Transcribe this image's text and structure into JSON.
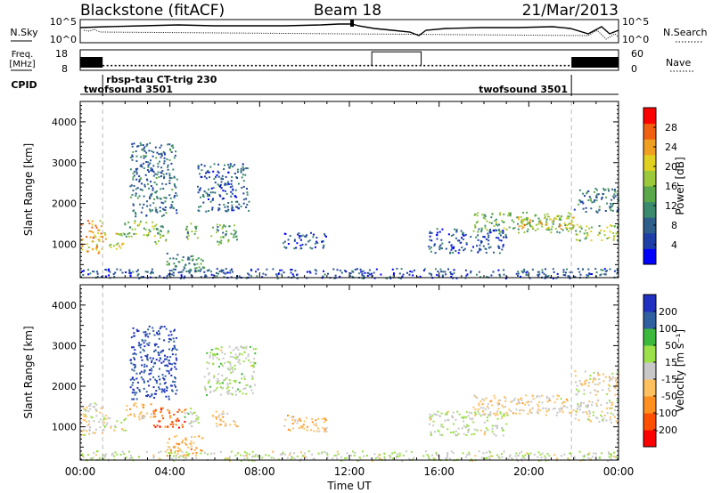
{
  "header": {
    "radar": "Blackstone (fitACF)",
    "beam": "Beam 18",
    "date": "21/Mar/2013"
  },
  "status_panels": {
    "nsky_label": "N.Sky",
    "nsearch_label": "N.Search",
    "noise_ticks": [
      "10^5",
      "10^0"
    ],
    "freq_label": "Freq.",
    "freq_unit": "[MHz]",
    "freq_ticks": [
      "18",
      "8"
    ],
    "nave_label": "Nave",
    "nave_ticks": [
      "60",
      "0"
    ],
    "cpid_label": "CPID",
    "cpid_segments": [
      {
        "name": "twofsound 3501",
        "start_h": 0.0,
        "end_h": 1.0
      },
      {
        "name": "rbsp-tau CT-trig 230",
        "start_h": 1.0,
        "end_h": 21.9
      },
      {
        "name": "twofsound 3501",
        "start_h": 21.9,
        "end_h": 24.0
      }
    ],
    "freq_high_window_h": [
      13.0,
      15.2
    ],
    "freq_dense_windows_h": [
      [
        0.0,
        1.0
      ],
      [
        21.9,
        24.0
      ]
    ]
  },
  "chart_data": [
    {
      "type": "heatmap",
      "panel": "power",
      "ylabel": "Slant Range [km]",
      "xlabel": "",
      "xlim": [
        0,
        24
      ],
      "ylim": [
        180,
        4500
      ],
      "yticks": [
        "1000",
        "2000",
        "3000",
        "4000"
      ],
      "colorbar_label": "Power [dB]",
      "colorbar_ticks": [
        "28",
        "24",
        "20",
        "16",
        "12",
        "8",
        "4"
      ],
      "colorbar_range": [
        0,
        30
      ],
      "colors": [
        "#0000ff",
        "#1f3fa8",
        "#2e5e8a",
        "#3c8a6e",
        "#5aa84a",
        "#9cc83c",
        "#e0d020",
        "#f0a020",
        "#f06010",
        "#ff0000"
      ],
      "echo_regions": [
        {
          "t": [
            0.0,
            1.0
          ],
          "r": [
            800,
            1600
          ],
          "value": 22
        },
        {
          "t": [
            1.0,
            1.9
          ],
          "r": [
            900,
            1300
          ],
          "value": 18
        },
        {
          "t": [
            1.9,
            3.2
          ],
          "r": [
            1200,
            1600
          ],
          "value": 15
        },
        {
          "t": [
            3.2,
            4.0
          ],
          "r": [
            1000,
            1500
          ],
          "value": 14
        },
        {
          "t": [
            2.2,
            4.3
          ],
          "r": [
            1700,
            3500
          ],
          "value": 8
        },
        {
          "t": [
            3.8,
            5.5
          ],
          "r": [
            300,
            800
          ],
          "value": 10
        },
        {
          "t": [
            4.6,
            5.2
          ],
          "r": [
            1100,
            1600
          ],
          "value": 13
        },
        {
          "t": [
            5.2,
            7.5
          ],
          "r": [
            1800,
            3000
          ],
          "value": 7
        },
        {
          "t": [
            5.8,
            7.0
          ],
          "r": [
            1000,
            1500
          ],
          "value": 12
        },
        {
          "t": [
            9.0,
            11.0
          ],
          "r": [
            900,
            1300
          ],
          "value": 6
        },
        {
          "t": [
            15.5,
            19.0
          ],
          "r": [
            800,
            1400
          ],
          "value": 6
        },
        {
          "t": [
            17.5,
            22.0
          ],
          "r": [
            1300,
            1800
          ],
          "value": 14
        },
        {
          "t": [
            19.5,
            22.0
          ],
          "r": [
            1400,
            1700
          ],
          "value": 20
        },
        {
          "t": [
            22.0,
            24.0
          ],
          "r": [
            1100,
            1500
          ],
          "value": 16
        },
        {
          "t": [
            22.0,
            24.0
          ],
          "r": [
            1800,
            2400
          ],
          "value": 8
        },
        {
          "t": [
            0.0,
            24.0
          ],
          "r": [
            180,
            420
          ],
          "value": 6
        }
      ]
    },
    {
      "type": "heatmap",
      "panel": "velocity",
      "ylabel": "Slant Range [km]",
      "xlabel": "Time UT",
      "xlim": [
        0,
        24
      ],
      "ylim": [
        180,
        4500
      ],
      "xticks": [
        "00:00",
        "04:00",
        "08:00",
        "12:00",
        "16:00",
        "20:00",
        "00:00"
      ],
      "yticks": [
        "1000",
        "2000",
        "3000",
        "4000"
      ],
      "colorbar_label": "Velocity [m s⁻¹]",
      "colorbar_ticks": [
        "200",
        "100",
        "50",
        "15",
        "-15",
        "-50",
        "-100",
        "-200"
      ],
      "colorbar_range": [
        -250,
        250
      ],
      "colors": [
        "#ff0000",
        "#ff5000",
        "#ff9020",
        "#ffc060",
        "#c8c8c8",
        "#9ce04a",
        "#3cb83c",
        "#3060a0",
        "#2030c0"
      ],
      "echo_regions": [
        {
          "t": [
            0.0,
            1.0
          ],
          "r": [
            800,
            1600
          ],
          "value": -10
        },
        {
          "t": [
            1.0,
            2.0
          ],
          "r": [
            900,
            1300
          ],
          "value": 10
        },
        {
          "t": [
            2.0,
            3.2
          ],
          "r": [
            1200,
            1600
          ],
          "value": -60
        },
        {
          "t": [
            3.2,
            4.8
          ],
          "r": [
            1000,
            1500
          ],
          "value": -160
        },
        {
          "t": [
            2.2,
            4.3
          ],
          "r": [
            1700,
            3500
          ],
          "value": 200
        },
        {
          "t": [
            3.8,
            5.5
          ],
          "r": [
            300,
            800
          ],
          "value": -80
        },
        {
          "t": [
            4.6,
            5.3
          ],
          "r": [
            1000,
            1500
          ],
          "value": 40
        },
        {
          "t": [
            5.5,
            7.8
          ],
          "r": [
            1800,
            3000
          ],
          "value": 30
        },
        {
          "t": [
            5.8,
            7.0
          ],
          "r": [
            1000,
            1400
          ],
          "value": -40
        },
        {
          "t": [
            9.0,
            11.0
          ],
          "r": [
            900,
            1300
          ],
          "value": -60
        },
        {
          "t": [
            15.5,
            19.0
          ],
          "r": [
            800,
            1400
          ],
          "value": 20
        },
        {
          "t": [
            17.5,
            22.0
          ],
          "r": [
            1300,
            1800
          ],
          "value": -30
        },
        {
          "t": [
            22.0,
            24.0
          ],
          "r": [
            1100,
            1700
          ],
          "value": 0
        },
        {
          "t": [
            22.0,
            24.0
          ],
          "r": [
            1800,
            2400
          ],
          "value": -20
        },
        {
          "t": [
            0.0,
            24.0
          ],
          "r": [
            180,
            420
          ],
          "value": 20
        }
      ]
    }
  ]
}
